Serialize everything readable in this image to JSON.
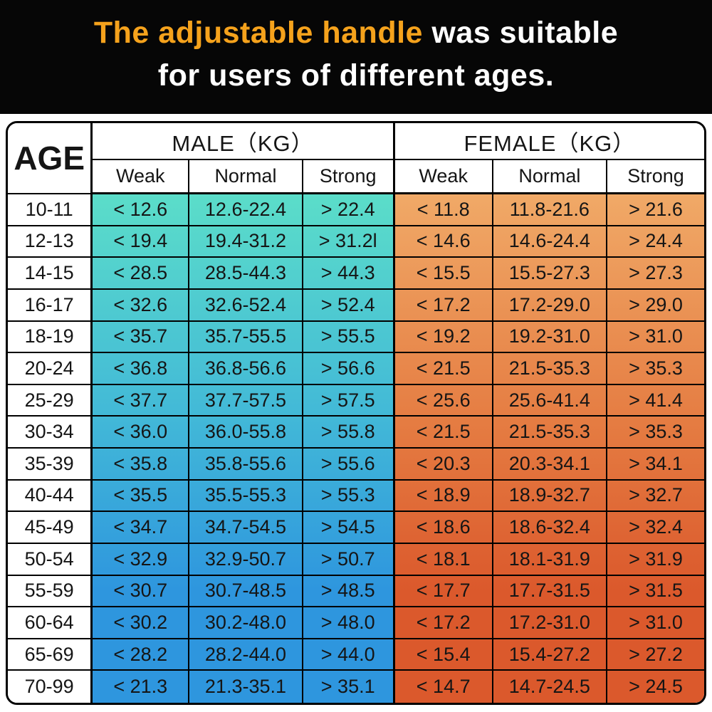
{
  "banner": {
    "highlight_text": "The adjustable handle",
    "line1_rest": " was suitable",
    "line2": "for users of different ages.",
    "highlight_color": "#F5A21C",
    "text_color": "#FFFFFF",
    "background_color": "#060606"
  },
  "table": {
    "corner_header": "AGE",
    "male_group_label": "MALE（KG）",
    "female_group_label": "FEMALE（KG）",
    "sub_headers": [
      "Weak",
      "Normal",
      "Strong"
    ],
    "border_color": "#000000",
    "male_gradient_top": "#5BDDC9",
    "male_gradient_mid": "#43BAD7",
    "male_gradient_bottom": "#2E96DE",
    "female_gradient_top": "#F0A967",
    "female_gradient_mid": "#E57C42",
    "female_gradient_bottom": "#DB592C"
  },
  "chart_data": {
    "type": "table",
    "title": "The adjustable handle was suitable for users of different ages.",
    "columns": [
      "AGE",
      "MALE Weak (KG)",
      "MALE Normal (KG)",
      "MALE Strong (KG)",
      "FEMALE Weak (KG)",
      "FEMALE Normal (KG)",
      "FEMALE Strong (KG)"
    ],
    "rows": [
      [
        "10-11",
        "< 12.6",
        "12.6-22.4",
        "> 22.4",
        "< 11.8",
        "11.8-21.6",
        "> 21.6"
      ],
      [
        "12-13",
        "< 19.4",
        "19.4-31.2",
        "> 31.2l",
        "< 14.6",
        "14.6-24.4",
        "> 24.4"
      ],
      [
        "14-15",
        "< 28.5",
        "28.5-44.3",
        "> 44.3",
        "< 15.5",
        "15.5-27.3",
        "> 27.3"
      ],
      [
        "16-17",
        "< 32.6",
        "32.6-52.4",
        "> 52.4",
        "< 17.2",
        "17.2-29.0",
        "> 29.0"
      ],
      [
        "18-19",
        "< 35.7",
        "35.7-55.5",
        "> 55.5",
        "< 19.2",
        "19.2-31.0",
        "> 31.0"
      ],
      [
        "20-24",
        "< 36.8",
        "36.8-56.6",
        "> 56.6",
        "< 21.5",
        "21.5-35.3",
        "> 35.3"
      ],
      [
        "25-29",
        "< 37.7",
        "37.7-57.5",
        "> 57.5",
        "< 25.6",
        "25.6-41.4",
        "> 41.4"
      ],
      [
        "30-34",
        "< 36.0",
        "36.0-55.8",
        "> 55.8",
        "< 21.5",
        "21.5-35.3",
        "> 35.3"
      ],
      [
        "35-39",
        "< 35.8",
        "35.8-55.6",
        "> 55.6",
        "< 20.3",
        "20.3-34.1",
        "> 34.1"
      ],
      [
        "40-44",
        "< 35.5",
        "35.5-55.3",
        "> 55.3",
        "< 18.9",
        "18.9-32.7",
        "> 32.7"
      ],
      [
        "45-49",
        "< 34.7",
        "34.7-54.5",
        "> 54.5",
        "< 18.6",
        "18.6-32.4",
        "> 32.4"
      ],
      [
        "50-54",
        "< 32.9",
        "32.9-50.7",
        "> 50.7",
        "< 18.1",
        "18.1-31.9",
        "> 31.9"
      ],
      [
        "55-59",
        "< 30.7",
        "30.7-48.5",
        "> 48.5",
        "< 17.7",
        "17.7-31.5",
        "> 31.5"
      ],
      [
        "60-64",
        "< 30.2",
        "30.2-48.0",
        "> 48.0",
        "< 17.2",
        "17.2-31.0",
        "> 31.0"
      ],
      [
        "65-69",
        "< 28.2",
        "28.2-44.0",
        "> 44.0",
        "< 15.4",
        "15.4-27.2",
        "> 27.2"
      ],
      [
        "70-99",
        "< 21.3",
        "21.3-35.1",
        "> 35.1",
        "< 14.7",
        "14.7-24.5",
        "> 24.5"
      ]
    ]
  }
}
